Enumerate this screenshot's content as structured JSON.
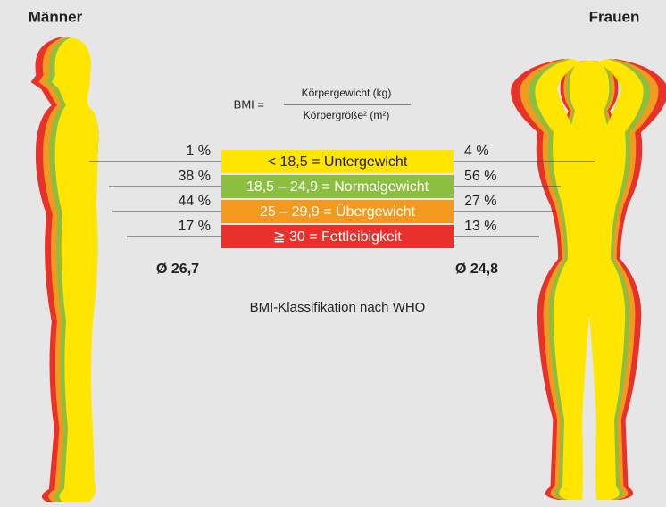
{
  "header": {
    "left": "Männer",
    "right": "Frauen"
  },
  "formula": {
    "prefix": "BMI =",
    "numerator": "Körpergewicht (kg)",
    "denominator": "Körpergröße² (m²)"
  },
  "categories": [
    "< 18,5 = Untergewicht",
    "18,5 – 24,9 = Normalgewicht",
    "25 – 29,9 = Übergewicht",
    "≧ 30 = Fettleibigkeit"
  ],
  "men": {
    "shares": [
      "1 %",
      "38 %",
      "44 %",
      "17 %"
    ],
    "average": "Ø 26,7"
  },
  "women": {
    "shares": [
      "4 %",
      "56 %",
      "27 %",
      "13 %"
    ],
    "average": "Ø 24,8"
  },
  "caption": "BMI-Klassifikation nach WHO"
}
